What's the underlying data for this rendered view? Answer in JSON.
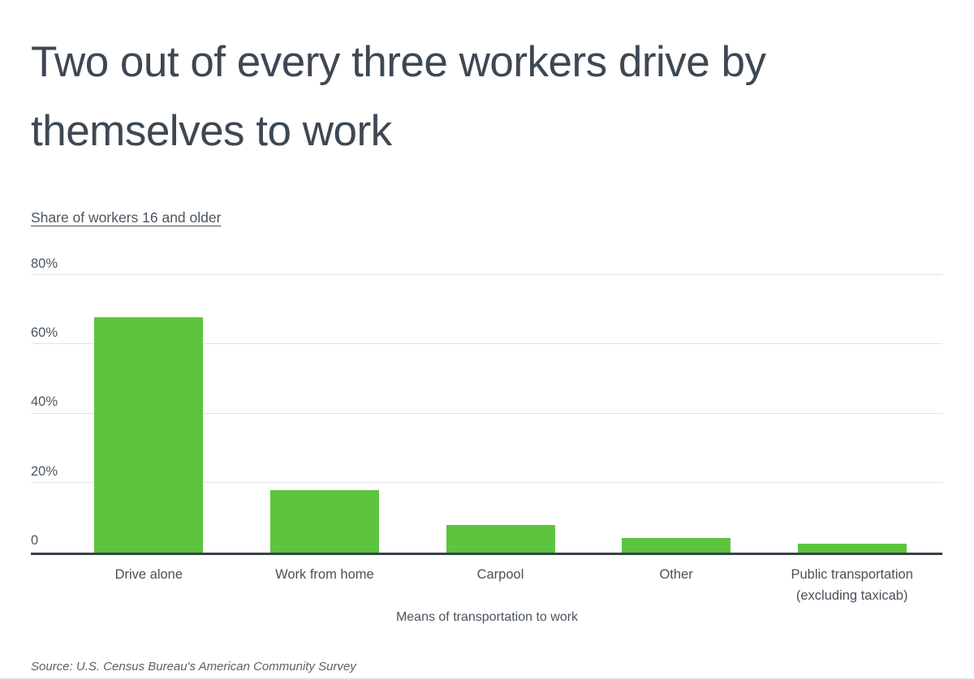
{
  "page": {
    "title_line1": "Two out of every three workers drive by",
    "title_line2": "themselves to work",
    "subtitle": "Share of workers 16 and older",
    "xlabel": "Means of transportation to work",
    "source": "Source: U.S. Census Bureau's American Community Survey"
  },
  "chart_data": {
    "type": "bar",
    "title": "Two out of every three workers drive by themselves to work",
    "subtitle": "Share of workers 16 and older",
    "categories": [
      "Drive alone",
      "Work from home",
      "Carpool",
      "Other",
      "Public transportation (excluding taxicab)"
    ],
    "values": [
      67.8,
      17.9,
      7.8,
      4.2,
      2.5
    ],
    "xlabel": "Means of transportation to work",
    "ylabel": "Share of workers 16 and older (%)",
    "ylim": [
      0,
      80
    ],
    "yticks": [
      {
        "label": "80%",
        "value": 80
      },
      {
        "label": "60%",
        "value": 60
      },
      {
        "label": "40%",
        "value": 40
      },
      {
        "label": "20%",
        "value": 20
      },
      {
        "label": "0",
        "value": 0
      }
    ],
    "grid": true,
    "legend_position": "none",
    "bar_color": "#5cc43d",
    "axis_color": "#37424d",
    "gridline_color": "#e3e3e3",
    "source": "Source: U.S. Census Bureau's American Community Survey"
  }
}
